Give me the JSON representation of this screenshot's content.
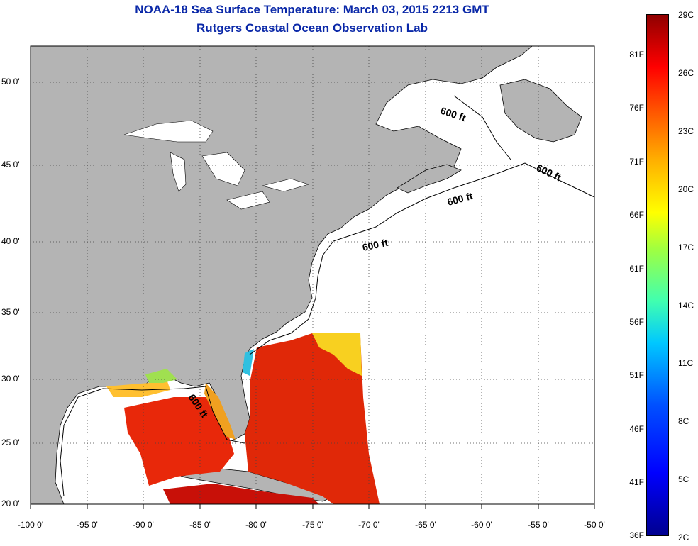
{
  "title_line1": "NOAA-18 Sea Surface Temperature:  March 03, 2015 2213 GMT",
  "title_line2": "Rutgers Coastal Ocean Observation Lab",
  "lat_labels": [
    {
      "text": "50 0'",
      "lat": 50
    },
    {
      "text": "45 0'",
      "lat": 45
    },
    {
      "text": "40 0'",
      "lat": 40
    },
    {
      "text": "35 0'",
      "lat": 35
    },
    {
      "text": "30 0'",
      "lat": 30
    },
    {
      "text": "25 0'",
      "lat": 25
    },
    {
      "text": "20 0'",
      "lat": 20
    }
  ],
  "lon_labels": [
    {
      "text": "-100 0'",
      "lon": -100
    },
    {
      "text": "-95 0'",
      "lon": -95
    },
    {
      "text": "-90 0'",
      "lon": -90
    },
    {
      "text": "-85 0'",
      "lon": -85
    },
    {
      "text": "-80 0'",
      "lon": -80
    },
    {
      "text": "-75 0'",
      "lon": -75
    },
    {
      "text": "-70 0'",
      "lon": -70
    },
    {
      "text": "-65 0'",
      "lon": -65
    },
    {
      "text": "-60 0'",
      "lon": -60
    },
    {
      "text": "-55 0'",
      "lon": -55
    },
    {
      "text": "-50 0'",
      "lon": -50
    }
  ],
  "contour_labels": [
    "600 ft",
    "600 ft",
    "600 ft",
    "600 ft",
    "600 ft"
  ],
  "colorbar": {
    "fahrenheit": [
      "81F",
      "76F",
      "71F",
      "66F",
      "61F",
      "56F",
      "51F",
      "46F",
      "41F",
      "36F"
    ],
    "celsius": [
      "29C",
      "26C",
      "23C",
      "20C",
      "17C",
      "14C",
      "11C",
      "8C",
      "5C",
      "2C"
    ]
  },
  "colors": {
    "title": "#0a28a8",
    "land": "#b4b4b4",
    "ocean": "#ffffff",
    "grid": "#333333"
  }
}
